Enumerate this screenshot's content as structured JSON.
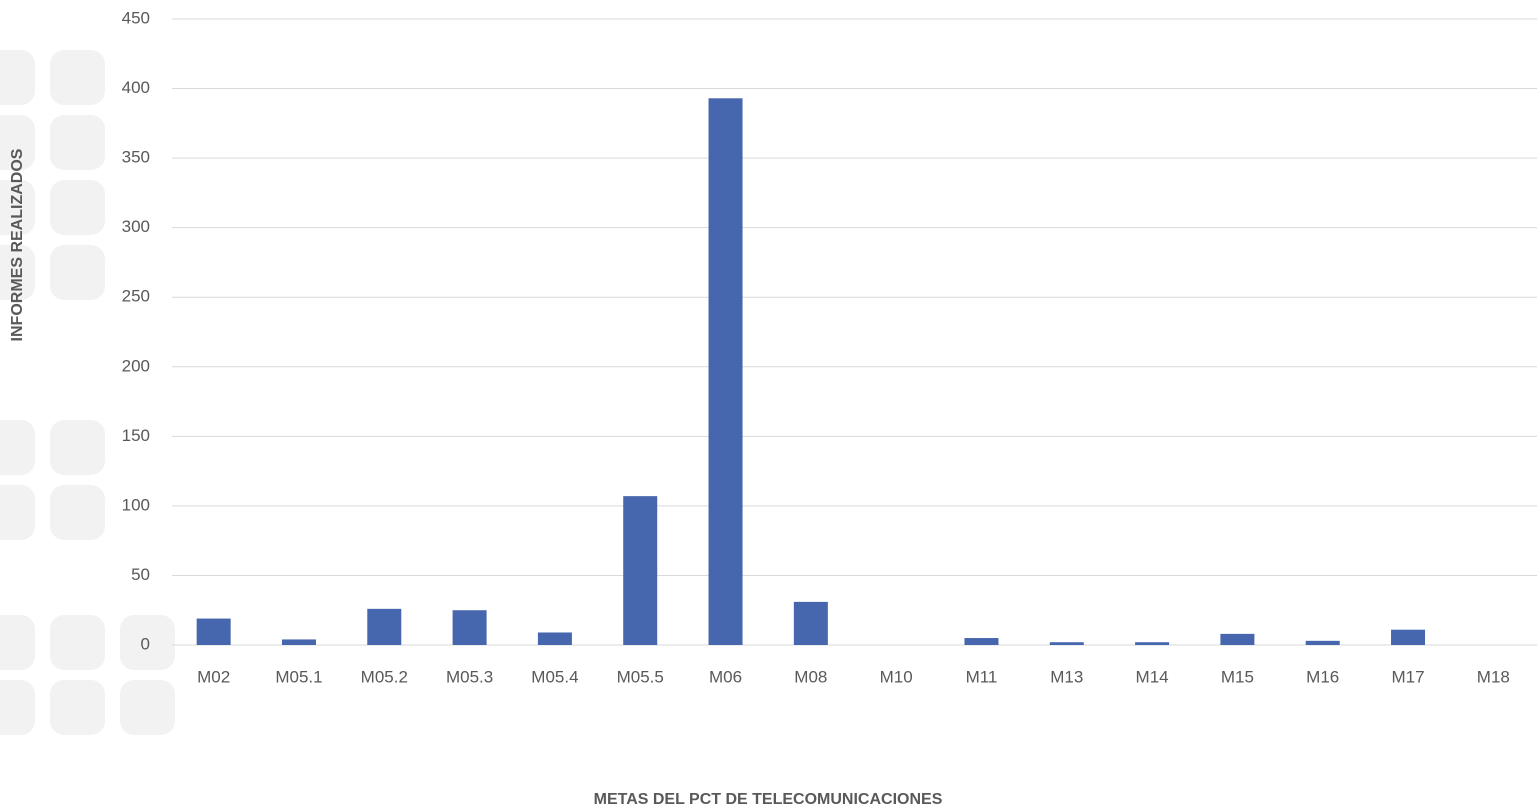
{
  "chart_data": {
    "type": "bar",
    "y_label": "INFORMES REALIZADOS",
    "x_label": "METAS DEL PCT DE TELECOMUNICACIONES",
    "categories": [
      "M02",
      "M05.1",
      "M05.2",
      "M05.3",
      "M05.4",
      "M05.5",
      "M06",
      "M08",
      "M10",
      "M11",
      "M13",
      "M14",
      "M15",
      "M16",
      "M17",
      "M18"
    ],
    "values": [
      19,
      4,
      26,
      25,
      9,
      107,
      393,
      31,
      0,
      5,
      2,
      2,
      8,
      3,
      11,
      0
    ],
    "color": "#4666ae",
    "ylim": [
      0,
      450
    ],
    "yticks": [
      0,
      50,
      100,
      150,
      200,
      250,
      300,
      350,
      400,
      450
    ],
    "grid": true
  }
}
